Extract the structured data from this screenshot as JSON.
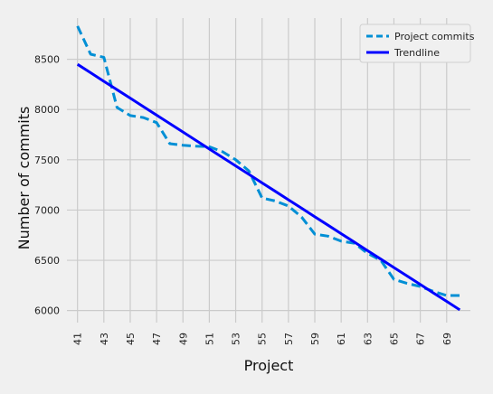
{
  "chart_data": {
    "type": "line",
    "title": "",
    "xlabel": "Project",
    "ylabel": "Number of commits",
    "x": [
      41,
      42,
      43,
      44,
      45,
      46,
      47,
      48,
      49,
      50,
      51,
      52,
      53,
      54,
      55,
      56,
      57,
      58,
      59,
      60,
      61,
      62,
      63,
      64,
      65,
      66,
      67,
      68,
      69,
      70
    ],
    "x_ticks": [
      41,
      43,
      45,
      47,
      49,
      51,
      53,
      55,
      57,
      59,
      61,
      63,
      65,
      67,
      69
    ],
    "y_ticks": [
      6000,
      6500,
      7000,
      7500,
      8000,
      8500
    ],
    "xlim": [
      40.2,
      70.8
    ],
    "ylim": [
      5880,
      8910
    ],
    "grid": true,
    "legend_position": "top-right",
    "series": [
      {
        "name": "Project commits",
        "style": "dashed",
        "color": "#008fd5",
        "values": [
          8830,
          8550,
          8520,
          8020,
          7940,
          7920,
          7870,
          7660,
          7645,
          7635,
          7630,
          7580,
          7500,
          7390,
          7120,
          7090,
          7040,
          6930,
          6760,
          6740,
          6690,
          6670,
          6570,
          6500,
          6310,
          6270,
          6240,
          6190,
          6150,
          6150
        ]
      },
      {
        "name": "Trendline",
        "style": "solid",
        "color": "#0000ff",
        "values": [
          8450,
          8366,
          8281,
          8197,
          8113,
          8029,
          7944,
          7860,
          7776,
          7692,
          7607,
          7523,
          7439,
          7355,
          7270,
          7186,
          7102,
          7018,
          6933,
          6849,
          6765,
          6681,
          6596,
          6512,
          6428,
          6344,
          6259,
          6175,
          6091,
          6007
        ]
      }
    ]
  }
}
